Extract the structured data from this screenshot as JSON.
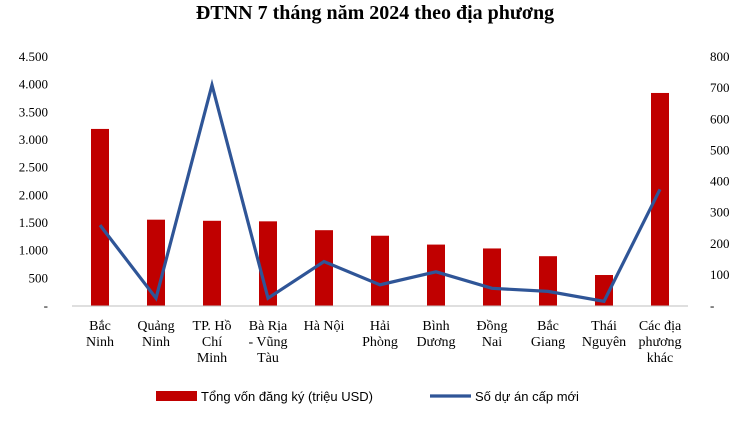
{
  "chart_data": {
    "type": "bar",
    "title": "ĐTNN 7 tháng năm 2024 theo địa phương",
    "categories": [
      [
        "Bắc",
        "Ninh"
      ],
      [
        "Quảng",
        "Ninh"
      ],
      [
        "TP. Hồ",
        "Chí",
        "Minh"
      ],
      [
        "Bà Rịa",
        "- Vũng",
        "Tàu"
      ],
      [
        "Hà Nội"
      ],
      [
        "Hải",
        "Phòng"
      ],
      [
        "Bình",
        "Dương"
      ],
      [
        "Đồng",
        "Nai"
      ],
      [
        "Bắc",
        "Giang"
      ],
      [
        "Thái",
        "Nguyên"
      ],
      [
        "Các địa",
        "phương",
        "khác"
      ]
    ],
    "series": [
      {
        "name": "Tổng vốn đăng ký (triệu USD)",
        "type": "bar",
        "axis": "left",
        "color": "#c00000",
        "values": [
          3200,
          1560,
          1540,
          1530,
          1370,
          1270,
          1110,
          1040,
          900,
          560,
          3850
        ]
      },
      {
        "name": "Số dự án cấp mới",
        "type": "line",
        "axis": "right",
        "color": "#2f5597",
        "values": [
          260,
          25,
          710,
          25,
          143,
          68,
          110,
          57,
          47,
          15,
          375
        ]
      }
    ],
    "y_left": {
      "min": 0,
      "max": 4500,
      "step": 500,
      "tick_labels": [
        "-",
        "500",
        "1.000",
        "1.500",
        "2.000",
        "2.500",
        "3.000",
        "3.500",
        "4.000",
        "4.500"
      ]
    },
    "y_right": {
      "min": 0,
      "max": 800,
      "step": 100,
      "tick_labels": [
        "-",
        "100",
        "200",
        "300",
        "400",
        "500",
        "600",
        "700",
        "800"
      ]
    },
    "grid": false,
    "legend_position": "bottom"
  }
}
